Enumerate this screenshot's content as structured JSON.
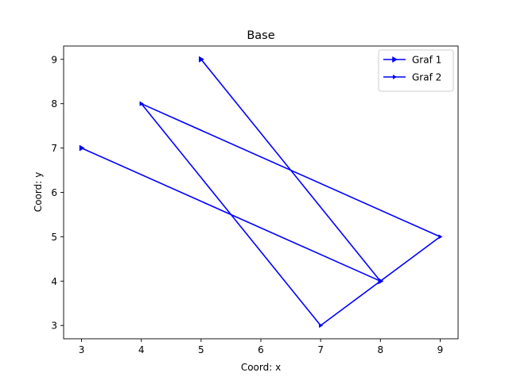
{
  "chart_data": {
    "type": "line",
    "title": "Base",
    "xlabel": "Coord: x",
    "ylabel": "Coord: y",
    "xlim": [
      2.7,
      9.3
    ],
    "ylim": [
      2.7,
      9.3
    ],
    "xticks": [
      3,
      4,
      5,
      6,
      7,
      8,
      9
    ],
    "yticks": [
      3,
      4,
      5,
      6,
      7,
      8,
      9
    ],
    "grid": false,
    "legend_position": "top-right",
    "series": [
      {
        "name": "Graf 1",
        "color": "#0000ff",
        "marker": "triangle-right",
        "points": [
          {
            "x": 3,
            "y": 7
          },
          {
            "x": 8,
            "y": 4
          },
          {
            "x": 5,
            "y": 9
          },
          {
            "x": 8,
            "y": 4
          }
        ]
      },
      {
        "name": "Graf 2",
        "color": "#0000ff",
        "marker": "triangle-right-small",
        "points": [
          {
            "x": 4,
            "y": 8
          },
          {
            "x": 9,
            "y": 5
          },
          {
            "x": 7,
            "y": 3
          },
          {
            "x": 4,
            "y": 8
          }
        ]
      }
    ]
  }
}
